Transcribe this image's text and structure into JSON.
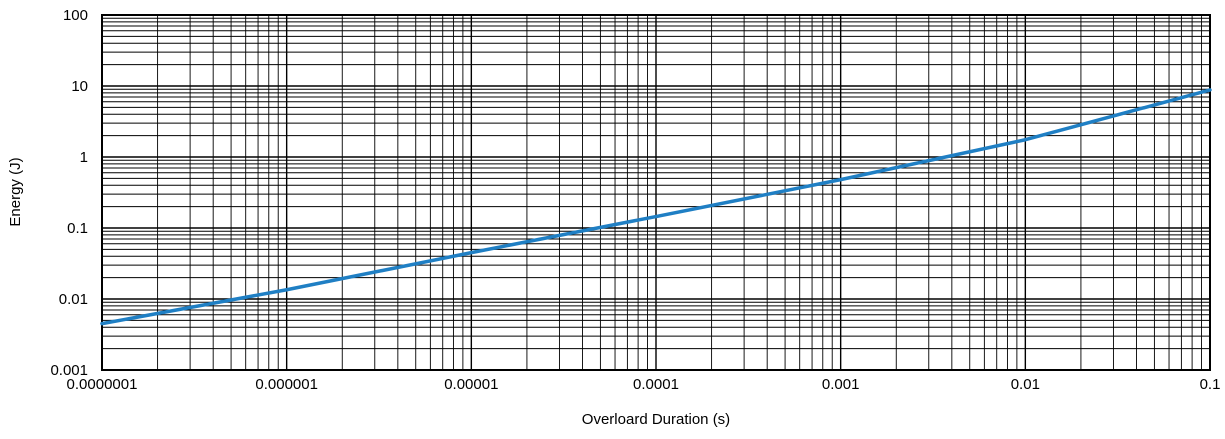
{
  "chart_data": {
    "type": "line",
    "title": "",
    "xlabel": "Overloard Duration (s)",
    "ylabel": "Energy (J)",
    "x_scale": "log",
    "y_scale": "log",
    "xlim": [
      1e-07,
      0.1
    ],
    "ylim": [
      0.001,
      100
    ],
    "x_ticks": [
      {
        "value": 1e-07,
        "label": "0.0000001"
      },
      {
        "value": 1e-06,
        "label": "0.000001"
      },
      {
        "value": 1e-05,
        "label": "0.00001"
      },
      {
        "value": 0.0001,
        "label": "0.0001"
      },
      {
        "value": 0.001,
        "label": "0.001"
      },
      {
        "value": 0.01,
        "label": "0.01"
      },
      {
        "value": 0.1,
        "label": "0.1"
      }
    ],
    "y_ticks": [
      {
        "value": 0.001,
        "label": "0.001"
      },
      {
        "value": 0.01,
        "label": "0.01"
      },
      {
        "value": 0.1,
        "label": "0.1"
      },
      {
        "value": 1,
        "label": "1"
      },
      {
        "value": 10,
        "label": "10"
      },
      {
        "value": 100,
        "label": "100"
      }
    ],
    "grid": true,
    "minor_grid": true,
    "series": [
      {
        "color": "#1f7fc4",
        "x": [
          1e-07,
          1e-06,
          1e-05,
          0.0001,
          0.001,
          0.01,
          0.1
        ],
        "y": [
          0.0045,
          0.0135,
          0.045,
          0.145,
          0.48,
          1.75,
          8.8
        ]
      }
    ]
  }
}
